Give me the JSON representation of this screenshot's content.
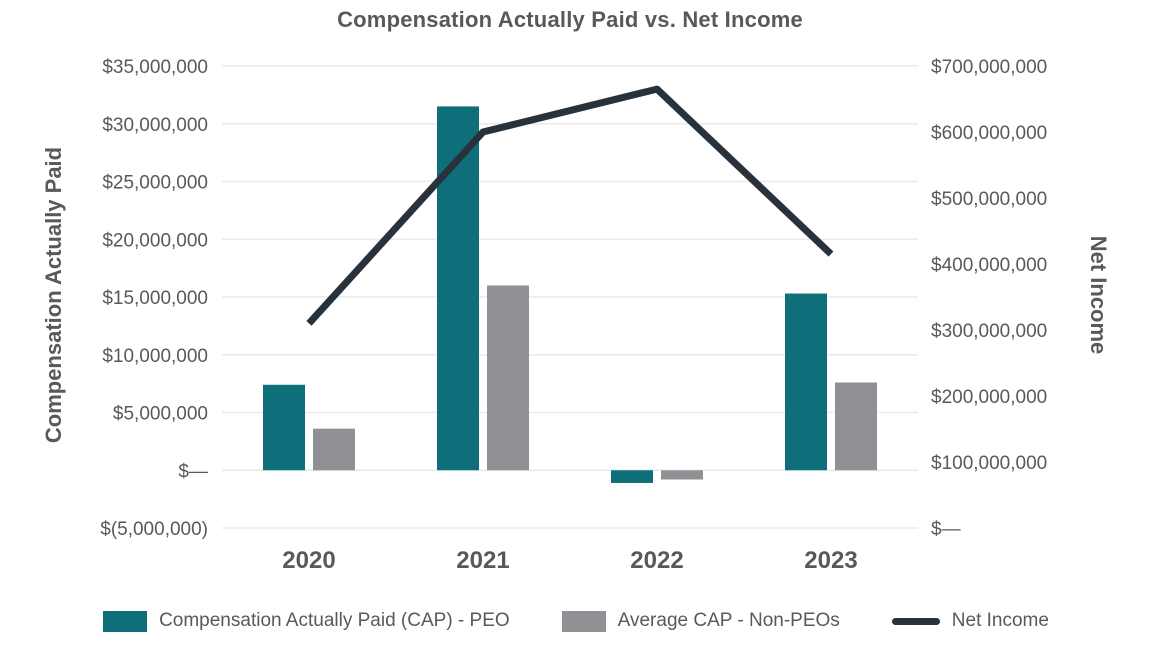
{
  "chart_data": {
    "type": "combo-bar-line",
    "title": "Compensation Actually Paid vs. Net Income",
    "categories": [
      "2020",
      "2021",
      "2022",
      "2023"
    ],
    "series": [
      {
        "name": "Compensation Actually Paid (CAP) - PEO",
        "type": "bar",
        "axis": "left",
        "color": "#0e6e79",
        "values": [
          7400000,
          31500000,
          -1100000,
          15300000
        ]
      },
      {
        "name": "Average CAP - Non-PEOs",
        "type": "bar",
        "axis": "left",
        "color": "#909194",
        "values": [
          3600000,
          16000000,
          -800000,
          7600000
        ]
      },
      {
        "name": "Net Income",
        "type": "line",
        "axis": "right",
        "color": "#27323c",
        "values": [
          310000000,
          600000000,
          665000000,
          415000000
        ]
      }
    ],
    "left_axis": {
      "title": "Compensation Actually Paid",
      "min": -5000000,
      "max": 35000000,
      "tick_step": 5000000,
      "tick_labels_top_to_bottom": [
        "$35,000,000",
        "$30,000,000",
        "$25,000,000",
        "$20,000,000",
        "$15,000,000",
        "$10,000,000",
        "$5,000,000",
        "$—",
        "$(5,000,000)"
      ]
    },
    "right_axis": {
      "title": "Net Income",
      "min": 0,
      "max": 700000000,
      "tick_step": 100000000,
      "tick_labels_top_to_bottom": [
        "$700,000,000",
        "$600,000,000",
        "$500,000,000",
        "$400,000,000",
        "$300,000,000",
        "$200,000,000",
        "$100,000,000",
        "$—"
      ]
    },
    "grid": true,
    "legend_position": "bottom",
    "colors": {
      "text": "#595959",
      "title_text": "#58595b",
      "gridline": "#e9eaeb",
      "background": "#ffffff"
    }
  }
}
